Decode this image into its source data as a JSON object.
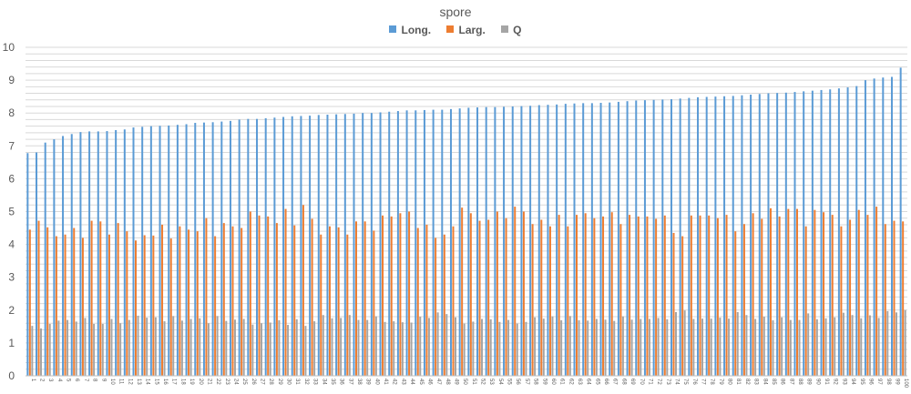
{
  "chart_data": {
    "type": "bar",
    "title": "spore",
    "xlabel": "",
    "ylabel": "",
    "ylim": [
      0,
      10
    ],
    "y_ticks": [
      "0",
      "1",
      "2",
      "3",
      "4",
      "5",
      "6",
      "7",
      "8",
      "9",
      "10"
    ],
    "grid": "horizontal minor lines every 0.2",
    "legend_position": "top",
    "categories": [
      "1",
      "2",
      "3",
      "4",
      "5",
      "6",
      "7",
      "8",
      "9",
      "10",
      "11",
      "12",
      "13",
      "14",
      "15",
      "16",
      "17",
      "18",
      "19",
      "20",
      "21",
      "22",
      "23",
      "24",
      "25",
      "26",
      "27",
      "28",
      "29",
      "30",
      "31",
      "32",
      "33",
      "34",
      "35",
      "36",
      "37",
      "38",
      "39",
      "40",
      "41",
      "42",
      "43",
      "44",
      "45",
      "46",
      "47",
      "48",
      "49",
      "50",
      "51",
      "52",
      "53",
      "54",
      "55",
      "56",
      "57",
      "58",
      "59",
      "60",
      "61",
      "62",
      "63",
      "64",
      "65",
      "66",
      "67",
      "68",
      "69",
      "70",
      "71",
      "72",
      "73",
      "74",
      "75",
      "76",
      "77",
      "78",
      "79",
      "80",
      "81",
      "82",
      "83",
      "84",
      "85",
      "86",
      "87",
      "88",
      "89",
      "90",
      "91",
      "92",
      "93",
      "94",
      "95",
      "96",
      "97",
      "98",
      "99",
      "100"
    ],
    "series": [
      {
        "name": "Long.",
        "color": "#5B9BD5",
        "values": [
          6.78,
          6.8,
          7.1,
          7.2,
          7.3,
          7.36,
          7.42,
          7.44,
          7.44,
          7.45,
          7.48,
          7.5,
          7.56,
          7.58,
          7.6,
          7.61,
          7.62,
          7.64,
          7.66,
          7.7,
          7.71,
          7.72,
          7.74,
          7.76,
          7.8,
          7.82,
          7.82,
          7.84,
          7.86,
          7.88,
          7.9,
          7.91,
          7.92,
          7.94,
          7.95,
          7.96,
          7.97,
          7.98,
          8.0,
          8.0,
          8.02,
          8.04,
          8.06,
          8.08,
          8.08,
          8.09,
          8.1,
          8.1,
          8.12,
          8.14,
          8.16,
          8.17,
          8.18,
          8.18,
          8.19,
          8.2,
          8.21,
          8.22,
          8.24,
          8.25,
          8.26,
          8.28,
          8.29,
          8.3,
          8.3,
          8.31,
          8.32,
          8.34,
          8.36,
          8.38,
          8.39,
          8.4,
          8.41,
          8.42,
          8.44,
          8.46,
          8.48,
          8.49,
          8.5,
          8.51,
          8.52,
          8.54,
          8.56,
          8.58,
          8.6,
          8.61,
          8.62,
          8.64,
          8.66,
          8.68,
          8.7,
          8.72,
          8.75,
          8.78,
          8.82,
          9.0,
          9.05,
          9.08,
          9.1,
          9.38
        ]
      },
      {
        "name": "Larg.",
        "color": "#ED7D31",
        "values": [
          4.45,
          4.72,
          4.52,
          4.25,
          4.3,
          4.5,
          4.2,
          4.72,
          4.7,
          4.3,
          4.65,
          4.4,
          4.12,
          4.28,
          4.27,
          4.6,
          4.18,
          4.55,
          4.45,
          4.4,
          4.8,
          4.25,
          4.65,
          4.55,
          4.5,
          5.0,
          4.88,
          4.85,
          4.65,
          5.08,
          4.58,
          5.2,
          4.78,
          4.3,
          4.55,
          4.52,
          4.3,
          4.7,
          4.7,
          4.42,
          4.88,
          4.85,
          4.95,
          5.0,
          4.5,
          4.6,
          4.2,
          4.3,
          4.55,
          5.12,
          4.95,
          4.72,
          4.75,
          5.0,
          4.8,
          5.15,
          5.0,
          4.62,
          4.75,
          4.55,
          4.9,
          4.55,
          4.9,
          4.95,
          4.8,
          4.85,
          4.98,
          4.62,
          4.9,
          4.85,
          4.85,
          4.78,
          4.88,
          4.35,
          4.25,
          4.88,
          4.88,
          4.88,
          4.8,
          4.9,
          4.4,
          4.62,
          4.95,
          4.78,
          5.1,
          4.85,
          5.08,
          5.08,
          4.55,
          5.05,
          4.98,
          4.9,
          4.55,
          4.75,
          5.05,
          4.9,
          5.15,
          4.62,
          4.72,
          4.7
        ]
      },
      {
        "name": "Q",
        "color": "#A5A5A5",
        "values": [
          1.52,
          1.44,
          1.58,
          1.68,
          1.7,
          1.65,
          1.76,
          1.58,
          1.58,
          1.73,
          1.6,
          1.7,
          1.83,
          1.77,
          1.78,
          1.66,
          1.82,
          1.68,
          1.73,
          1.75,
          1.6,
          1.82,
          1.67,
          1.71,
          1.73,
          1.56,
          1.6,
          1.62,
          1.69,
          1.55,
          1.72,
          1.52,
          1.66,
          1.85,
          1.75,
          1.76,
          1.85,
          1.7,
          1.7,
          1.81,
          1.64,
          1.66,
          1.63,
          1.62,
          1.8,
          1.76,
          1.93,
          1.88,
          1.78,
          1.59,
          1.65,
          1.73,
          1.72,
          1.64,
          1.7,
          1.59,
          1.64,
          1.78,
          1.74,
          1.81,
          1.69,
          1.82,
          1.69,
          1.68,
          1.73,
          1.71,
          1.67,
          1.81,
          1.71,
          1.73,
          1.73,
          1.76,
          1.72,
          1.94,
          1.99,
          1.73,
          1.74,
          1.74,
          1.77,
          1.74,
          1.94,
          1.85,
          1.73,
          1.8,
          1.69,
          1.78,
          1.7,
          1.7,
          1.9,
          1.72,
          1.75,
          1.78,
          1.92,
          1.85,
          1.75,
          1.84,
          1.76,
          1.97,
          1.93,
          2.0
        ]
      }
    ]
  }
}
